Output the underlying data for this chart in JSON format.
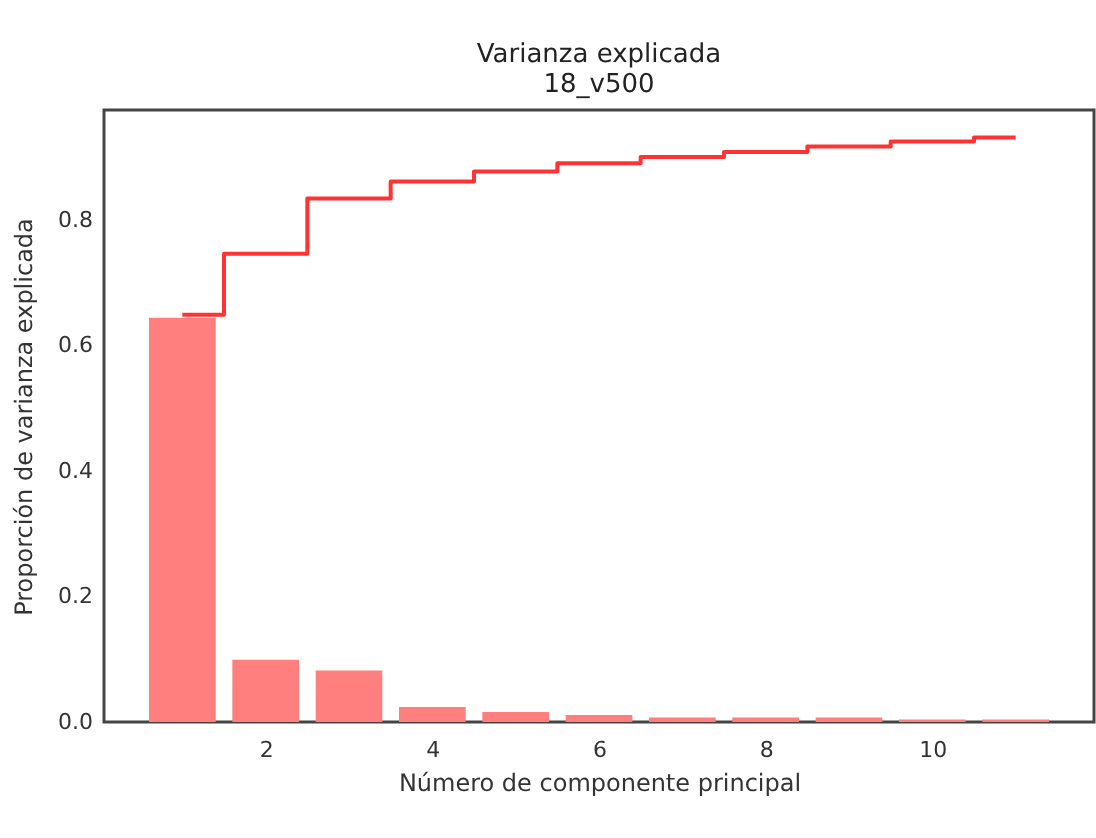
{
  "chart_data": {
    "type": "bar",
    "title": "Varianza explicada",
    "subtitle": "18_v500",
    "xlabel": "Número de componente principal",
    "ylabel": "Proporción de varianza explicada",
    "x": [
      1,
      2,
      3,
      4,
      5,
      6,
      7,
      8,
      9,
      10,
      11
    ],
    "series": [
      {
        "color": "#ff7f7f",
        "values": [
          0.644,
          0.099,
          0.082,
          0.024,
          0.016,
          0.011,
          0.007,
          0.007,
          0.007,
          0.004,
          0.004
        ]
      },
      {
        "type": "step",
        "color": "#ff3333",
        "values": [
          0.649,
          0.746,
          0.834,
          0.861,
          0.877,
          0.89,
          0.9,
          0.908,
          0.917,
          0.925,
          0.931
        ]
      }
    ],
    "xlim": [
      0.06,
      11.94
    ],
    "xticks": [
      2,
      4,
      6,
      8,
      10
    ],
    "ylim": [
      0,
      0.975
    ],
    "yticks": [
      {
        "value": 0,
        "label": "0.0"
      },
      0.2,
      0.4,
      0.6,
      0.8
    ],
    "grid": false
  }
}
